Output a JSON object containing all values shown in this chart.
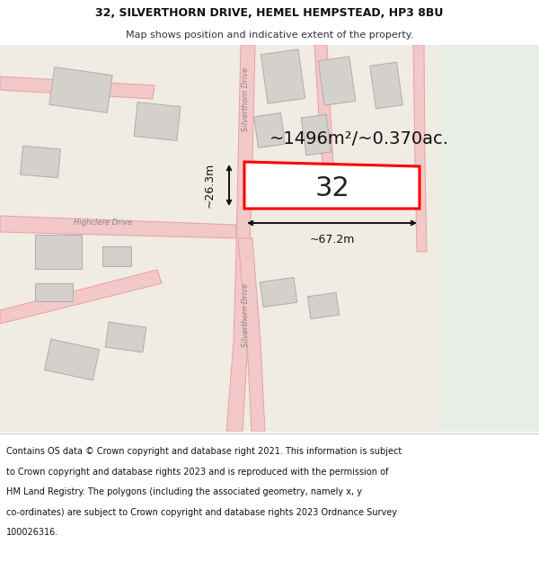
{
  "title_line1": "32, SILVERTHORN DRIVE, HEMEL HEMPSTEAD, HP3 8BU",
  "title_line2": "Map shows position and indicative extent of the property.",
  "footer_lines": [
    "Contains OS data © Crown copyright and database right 2021. This information is subject",
    "to Crown copyright and database rights 2023 and is reproduced with the permission of",
    "HM Land Registry. The polygons (including the associated geometry, namely x, y",
    "co-ordinates) are subject to Crown copyright and database rights 2023 Ordnance Survey",
    "100026316."
  ],
  "map_bg": "#f0ebe3",
  "map_right_bg": "#e8ede5",
  "road_fill": "#f2c8c8",
  "road_edge": "#e8a0a0",
  "build_fill": "#d4d0cb",
  "build_edge": "#b0aca8",
  "prop_fill": "#ffffff",
  "prop_edge": "#ff0000",
  "prop_lw": 2.2,
  "dim_color": "#111111",
  "area_text": "~1496m²/~0.370ac.",
  "width_text": "~67.2m",
  "height_text": "~26.3m",
  "prop_label": "32",
  "road_label_silverthorn": "Silverthorn Drive",
  "road_label_highclere": "Highclere Drive",
  "title_fs": 9,
  "subtitle_fs": 8,
  "footer_fs": 7,
  "area_fs": 14,
  "dim_fs": 9,
  "prop_num_fs": 22,
  "road_label_fs": 6
}
